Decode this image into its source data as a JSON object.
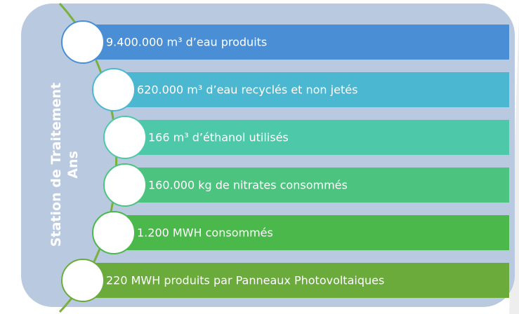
{
  "title": "Station de Traitement Ans",
  "items": [
    {
      "label": "9.400.000 m³ d’eau produits"
    },
    {
      "label": "620.000 m³ d’eau recyclés et non jetés"
    },
    {
      "label": "166 m³ d’éthanol utilisés"
    },
    {
      "label": "160.000 kg de nitrates consommés"
    },
    {
      "label": "1.200 MWH consommés"
    },
    {
      "label": "220 MWH produits par Panneaux Photovoltaiques"
    }
  ]
}
